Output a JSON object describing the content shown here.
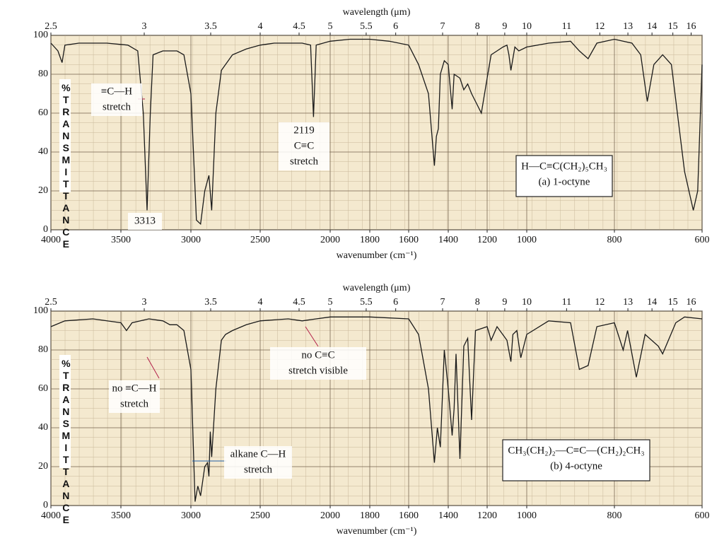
{
  "chart_data": [
    {
      "type": "line",
      "x_label": "wavenumber (cm⁻¹)",
      "x2_label": "wavelength (μm)",
      "y_label": "%TRANSMITTANCE",
      "xlim": [
        4000,
        600
      ],
      "xticks": [
        4000,
        3500,
        3000,
        2500,
        2000,
        1800,
        1600,
        1400,
        1200,
        1000,
        800,
        600
      ],
      "x2ticks": [
        2.5,
        3,
        3.5,
        4,
        4.5,
        5,
        5.5,
        6,
        7,
        8,
        9,
        10,
        11,
        12,
        13,
        14,
        15,
        16
      ],
      "ylim": [
        0,
        100
      ],
      "yticks": [
        0,
        20,
        40,
        60,
        80,
        100
      ],
      "grid": true,
      "color": "#1a1a1a",
      "x": [
        4000,
        3950,
        3920,
        3900,
        3800,
        3600,
        3450,
        3380,
        3340,
        3313,
        3290,
        3270,
        3200,
        3100,
        3050,
        3000,
        2960,
        2930,
        2900,
        2870,
        2850,
        2820,
        2780,
        2700,
        2600,
        2500,
        2400,
        2300,
        2200,
        2140,
        2119,
        2100,
        2000,
        1900,
        1800,
        1700,
        1600,
        1550,
        1500,
        1470,
        1460,
        1450,
        1440,
        1420,
        1400,
        1380,
        1370,
        1340,
        1320,
        1300,
        1280,
        1250,
        1230,
        1200,
        1180,
        1150,
        1120,
        1100,
        1090,
        1080,
        1060,
        1040,
        1000,
        950,
        900,
        880,
        860,
        840,
        800,
        760,
        740,
        725,
        710,
        690,
        670,
        640,
        620,
        610,
        600
      ],
      "values": [
        96,
        92,
        86,
        95,
        96,
        96,
        95,
        92,
        60,
        10,
        60,
        90,
        92,
        92,
        90,
        70,
        5,
        3,
        20,
        28,
        10,
        60,
        82,
        90,
        93,
        95,
        96,
        96,
        96,
        95,
        58,
        95,
        97,
        98,
        98,
        97,
        95,
        85,
        70,
        33,
        48,
        52,
        80,
        87,
        85,
        62,
        80,
        78,
        72,
        75,
        70,
        64,
        60,
        78,
        90,
        92,
        94,
        95,
        90,
        82,
        94,
        92,
        94,
        96,
        97,
        92,
        88,
        96,
        98,
        96,
        90,
        66,
        85,
        90,
        85,
        30,
        10,
        20,
        85
      ],
      "annotations": [
        {
          "lines": [
            "≡C—H",
            "stretch"
          ],
          "color": "#b3204a"
        },
        {
          "lines": [
            "3313"
          ],
          "color": "#b3204a"
        },
        {
          "lines": [
            "2119",
            "C≡C",
            "stretch"
          ],
          "color": "#b3204a"
        },
        {
          "lines": [
            "H—C≡C(CH₂)₅CH₃",
            "(a) 1-octyne"
          ],
          "color": "#1f5fa8",
          "boxed": true
        }
      ]
    },
    {
      "type": "line",
      "x_label": "wavenumber (cm⁻¹)",
      "x2_label": "wavelength (μm)",
      "y_label": "%TRANSMITTANCE",
      "xlim": [
        4000,
        600
      ],
      "xticks": [
        4000,
        3500,
        3000,
        2500,
        2000,
        1800,
        1600,
        1400,
        1200,
        1000,
        800,
        600
      ],
      "x2ticks": [
        2.5,
        3,
        3.5,
        4,
        4.5,
        5,
        5.5,
        6,
        7,
        8,
        9,
        10,
        11,
        12,
        13,
        14,
        15,
        16
      ],
      "ylim": [
        0,
        100
      ],
      "yticks": [
        0,
        20,
        40,
        60,
        80,
        100
      ],
      "grid": true,
      "color": "#1a1a1a",
      "x": [
        4000,
        3900,
        3700,
        3500,
        3460,
        3420,
        3300,
        3200,
        3150,
        3100,
        3050,
        3000,
        2970,
        2950,
        2930,
        2900,
        2880,
        2870,
        2860,
        2850,
        2820,
        2780,
        2750,
        2700,
        2600,
        2500,
        2300,
        2200,
        2100,
        2000,
        1800,
        1600,
        1550,
        1500,
        1470,
        1455,
        1440,
        1420,
        1400,
        1380,
        1370,
        1360,
        1340,
        1320,
        1300,
        1280,
        1260,
        1200,
        1180,
        1150,
        1100,
        1080,
        1070,
        1050,
        1030,
        1010,
        1000,
        950,
        900,
        880,
        860,
        840,
        800,
        780,
        770,
        750,
        730,
        700,
        690,
        660,
        640,
        600
      ],
      "values": [
        92,
        95,
        96,
        94,
        90,
        94,
        96,
        95,
        93,
        93,
        90,
        70,
        2,
        10,
        5,
        20,
        22,
        15,
        38,
        25,
        60,
        85,
        88,
        90,
        93,
        95,
        96,
        95,
        96,
        97,
        97,
        96,
        88,
        60,
        22,
        40,
        30,
        80,
        60,
        36,
        50,
        78,
        24,
        82,
        86,
        44,
        90,
        92,
        85,
        92,
        85,
        74,
        88,
        90,
        76,
        84,
        88,
        95,
        94,
        70,
        72,
        92,
        94,
        80,
        90,
        66,
        88,
        82,
        78,
        94,
        97,
        96
      ],
      "annotations": [
        {
          "lines": [
            "no ≡C—H",
            "stretch"
          ],
          "color": "#b3204a"
        },
        {
          "lines": [
            "no C≡C",
            "stretch visible"
          ],
          "color": "#b3204a"
        },
        {
          "lines": [
            "alkane C—H",
            "stretch"
          ],
          "color": "#1f5fa8"
        },
        {
          "lines": [
            "CH₃(CH₂)₂—C≡C—(CH₂)₂CH₃",
            "(b) 4-octyne"
          ],
          "color": "#1f5fa8",
          "boxed": true
        }
      ]
    }
  ]
}
